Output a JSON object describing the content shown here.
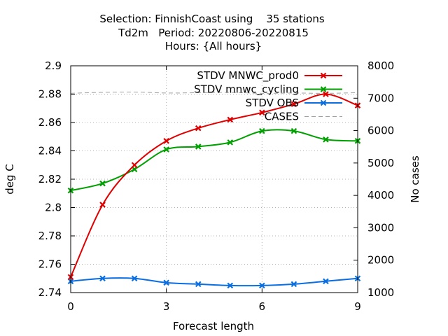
{
  "chart_data": {
    "type": "line",
    "title_lines": [
      "Selection: FinnishCoast using    35 stations",
      "Td2m   Period: 20220806-20220815",
      "Hours: {All hours}"
    ],
    "xlabel": "Forecast length",
    "ylabel": "deg C",
    "y2label": "No cases",
    "xlim": [
      0,
      9
    ],
    "ylim": [
      2.74,
      2.9
    ],
    "y2lim": [
      1000,
      8000
    ],
    "x_ticks": [
      0,
      3,
      6,
      9
    ],
    "y_ticks": [
      2.74,
      2.76,
      2.78,
      2.8,
      2.82,
      2.84,
      2.86,
      2.88,
      2.9
    ],
    "y_tick_labels": [
      "2.74",
      "2.76",
      "2.78",
      "2.8",
      "2.82",
      "2.84",
      "2.86",
      "2.88",
      "2.9"
    ],
    "y2_ticks": [
      1000,
      2000,
      3000,
      4000,
      5000,
      6000,
      7000,
      8000
    ],
    "grid": true,
    "legend_position": "top-right",
    "x": [
      0,
      1,
      2,
      3,
      4,
      5,
      6,
      7,
      8,
      9
    ],
    "series": [
      {
        "name": "STDV MNWC_prod0",
        "color": "#e00000",
        "axis": "y1",
        "marker": "x",
        "values": [
          2.751,
          2.802,
          2.83,
          2.847,
          2.856,
          2.862,
          2.867,
          2.873,
          2.88,
          2.872
        ]
      },
      {
        "name": "STDV mnwc_cycling",
        "color": "#00a000",
        "axis": "y1",
        "marker": "x",
        "values": [
          2.812,
          2.817,
          2.827,
          2.841,
          2.843,
          2.846,
          2.854,
          2.854,
          2.848,
          2.847
        ]
      },
      {
        "name": "STDV OBS",
        "color": "#0a6ee0",
        "axis": "y1",
        "marker": "x",
        "values": [
          2.748,
          2.75,
          2.75,
          2.747,
          2.746,
          2.745,
          2.745,
          2.746,
          2.748,
          2.75
        ]
      },
      {
        "name": "CASES",
        "color": "#a0a0a0",
        "axis": "y2",
        "marker": "none",
        "dashed": true,
        "values": [
          7150,
          7180,
          7190,
          7160,
          7170,
          7180,
          7150,
          7160,
          7150,
          7170
        ]
      }
    ]
  }
}
